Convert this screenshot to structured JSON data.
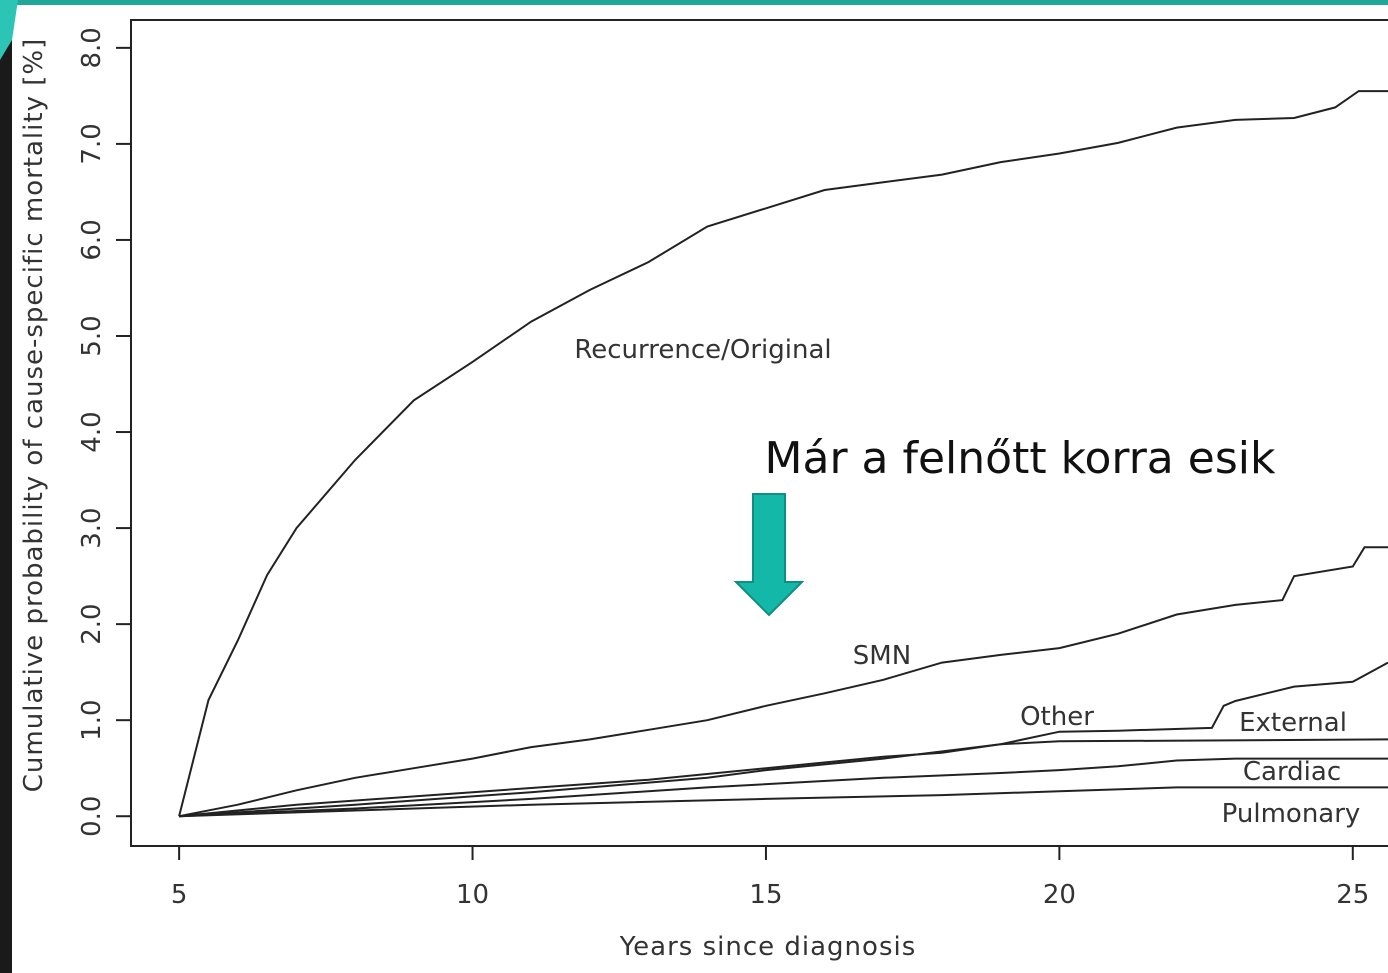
{
  "chart_data": {
    "type": "line",
    "xlabel": "Years since diagnosis",
    "ylabel": "Cumulative probability of cause-specific mortality [%]",
    "annotation": "Már a felnőtt korra esik",
    "xlim": [
      4.18,
      25.6
    ],
    "ylim": [
      -0.31,
      8.29
    ],
    "xticks": [
      5,
      10,
      15,
      20,
      25
    ],
    "yticks": [
      {
        "value": 0,
        "label": "0.0"
      },
      {
        "value": 1,
        "label": "1.0"
      },
      {
        "value": 2,
        "label": "2.0"
      },
      {
        "value": 3,
        "label": "3.0"
      },
      {
        "value": 4,
        "label": "4.0"
      },
      {
        "value": 5,
        "label": "5.0"
      },
      {
        "value": 6,
        "label": "6.0"
      },
      {
        "value": 7,
        "label": "7.0"
      },
      {
        "value": 8,
        "label": "8.0"
      }
    ],
    "series": [
      {
        "name": "Recurrence/Original",
        "color": "#222222",
        "x": [
          5,
          5.5,
          6,
          6.5,
          7,
          8,
          9,
          10,
          11,
          12,
          13,
          14,
          15,
          16,
          17,
          18,
          19,
          20,
          21,
          22,
          23,
          24,
          24.7,
          25.1,
          25.6
        ],
        "values": [
          0,
          1.21,
          1.83,
          2.51,
          3.0,
          3.71,
          4.33,
          4.73,
          5.15,
          5.48,
          5.77,
          6.14,
          6.33,
          6.52,
          6.6,
          6.68,
          6.81,
          6.9,
          7.01,
          7.17,
          7.25,
          7.27,
          7.38,
          7.55,
          7.55
        ]
      },
      {
        "name": "SMN",
        "color": "#222222",
        "x": [
          5,
          6,
          7,
          8,
          9,
          10,
          11,
          12,
          13,
          14,
          15,
          16,
          17,
          18,
          19,
          20,
          21,
          22,
          23,
          23.8,
          24,
          25,
          25.2,
          25.6
        ],
        "values": [
          0,
          0.12,
          0.27,
          0.4,
          0.5,
          0.6,
          0.72,
          0.8,
          0.9,
          1.0,
          1.15,
          1.28,
          1.42,
          1.6,
          1.68,
          1.75,
          1.9,
          2.1,
          2.2,
          2.25,
          2.5,
          2.6,
          2.8,
          2.8
        ]
      },
      {
        "name": "Other",
        "color": "#222222",
        "x": [
          5,
          7,
          10,
          13,
          15,
          17,
          18,
          19,
          20,
          21,
          22.6,
          22.8,
          23,
          24,
          25,
          25.6
        ],
        "values": [
          0,
          0.12,
          0.25,
          0.38,
          0.5,
          0.62,
          0.66,
          0.75,
          0.88,
          0.89,
          0.92,
          1.15,
          1.2,
          1.35,
          1.4,
          1.6
        ]
      },
      {
        "name": "External",
        "color": "#222222",
        "x": [
          5,
          8,
          11,
          14,
          15,
          17,
          19,
          20,
          25.6
        ],
        "values": [
          0,
          0.12,
          0.25,
          0.4,
          0.48,
          0.6,
          0.75,
          0.78,
          0.8
        ]
      },
      {
        "name": "Cardiac",
        "color": "#222222",
        "x": [
          5,
          8,
          11,
          14,
          17,
          19,
          20,
          21,
          22,
          23,
          25.6
        ],
        "values": [
          0,
          0.08,
          0.18,
          0.3,
          0.4,
          0.45,
          0.48,
          0.52,
          0.58,
          0.6,
          0.6
        ]
      },
      {
        "name": "Pulmonary",
        "color": "#222222",
        "x": [
          5,
          8,
          11,
          15,
          18,
          20,
          22,
          25.6
        ],
        "values": [
          0,
          0.06,
          0.12,
          0.18,
          0.22,
          0.26,
          0.3,
          0.3
        ]
      }
    ]
  }
}
